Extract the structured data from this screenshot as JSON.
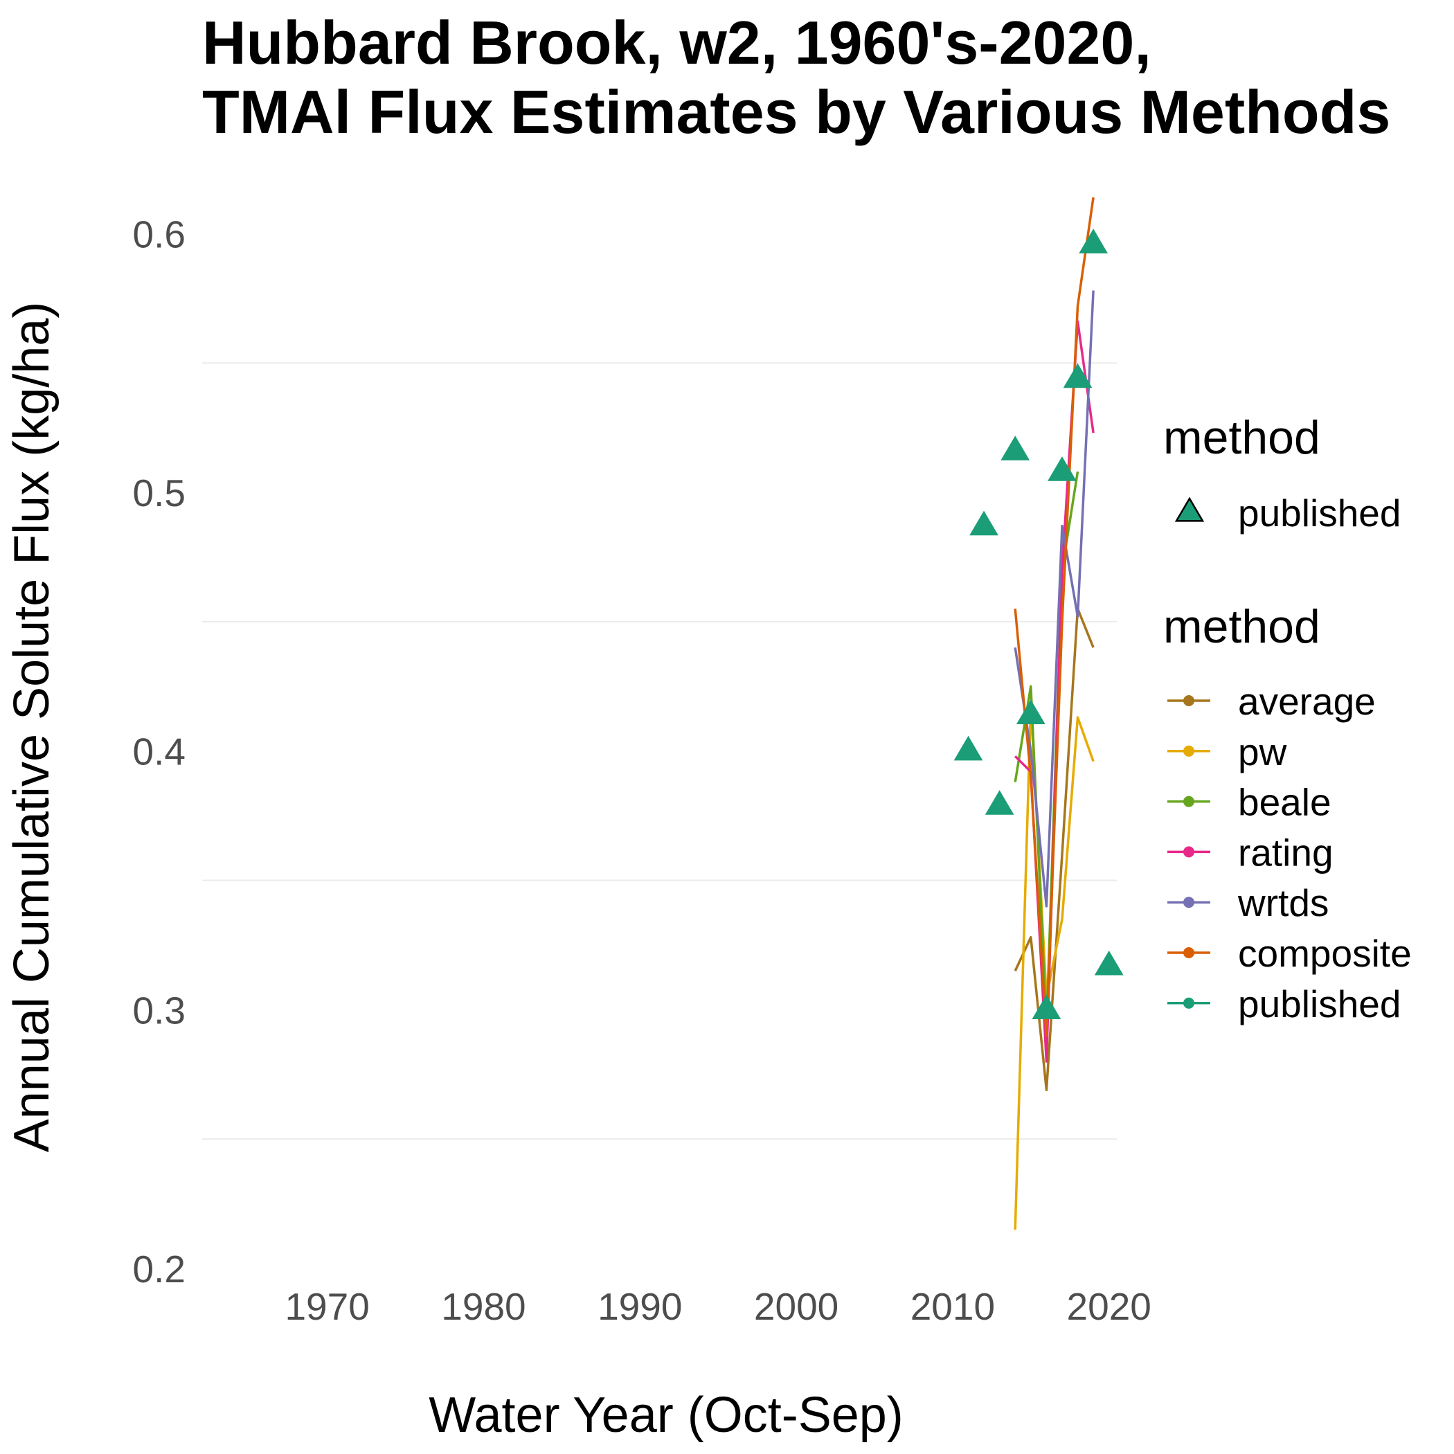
{
  "chart_data": {
    "type": "line",
    "title_lines": [
      "Hubbard Brook, w2, 1960's-2020,",
      "TMAl Flux Estimates by Various Methods"
    ],
    "xlabel": "Water Year (Oct-Sep)",
    "ylabel": "Annual Cumulative Solute Flux (kg/ha)",
    "xlim": [
      1962,
      2020.5
    ],
    "ylim": [
      0.2,
      0.61
    ],
    "x_ticks": [
      1970,
      1980,
      1990,
      2000,
      2010,
      2020
    ],
    "x_tick_labels": [
      "1970",
      "1980",
      "1990",
      "2000",
      "2010",
      "2020"
    ],
    "y_ticks": [
      0.2,
      0.3,
      0.4,
      0.5,
      0.6
    ],
    "y_tick_labels": [
      "0.2",
      "0.3",
      "0.4",
      "0.5",
      "0.6"
    ],
    "y_minor_gridlines": [
      0.25,
      0.35,
      0.45,
      0.55
    ],
    "grid": "horizontal only",
    "legend_placement": "right",
    "series": [
      {
        "name": "average",
        "color": "#a6761d",
        "x": [
          2014,
          2015,
          2016,
          2017,
          2018,
          2019
        ],
        "y": [
          0.315,
          0.328,
          0.269,
          0.36,
          0.455,
          0.44
        ]
      },
      {
        "name": "pw",
        "color": "#e6ab02",
        "x": [
          2014,
          2015,
          2016,
          2017,
          2018,
          2019
        ],
        "y": [
          0.215,
          0.418,
          0.305,
          0.335,
          0.413,
          0.396
        ]
      },
      {
        "name": "beale",
        "color": "#66a61e",
        "x": [
          2014,
          2015,
          2016,
          2017,
          2018
        ],
        "y": [
          0.388,
          0.425,
          0.293,
          0.47,
          0.508
        ]
      },
      {
        "name": "rating",
        "color": "#e7298a",
        "x": [
          2014,
          2015,
          2016,
          2017,
          2018,
          2019
        ],
        "y": [
          0.398,
          0.392,
          0.28,
          0.47,
          0.566,
          0.523
        ]
      },
      {
        "name": "wrtds",
        "color": "#7570b3",
        "x": [
          2014,
          2015,
          2016,
          2017,
          2018,
          2019
        ],
        "y": [
          0.44,
          0.4,
          0.34,
          0.487,
          0.452,
          0.578
        ]
      },
      {
        "name": "composite",
        "color": "#d95f02",
        "x": [
          2014,
          2015,
          2016,
          2017,
          2018,
          2019
        ],
        "y": [
          0.455,
          0.39,
          0.29,
          0.45,
          0.572,
          0.614
        ]
      },
      {
        "name": "published",
        "color": "#1b9e77",
        "marker": "triangle",
        "x": [
          2011,
          2012,
          2013,
          2014,
          2015,
          2016,
          2017,
          2018,
          2019,
          2020
        ],
        "y": [
          0.4,
          0.487,
          0.379,
          0.516,
          0.414,
          0.3,
          0.508,
          0.544,
          0.596,
          0.317
        ]
      }
    ],
    "legend_published_title": "method",
    "legend_published_entries": [
      "published"
    ],
    "legend_lines_title": "method",
    "legend_lines_entries": [
      "average",
      "pw",
      "beale",
      "rating",
      "wrtds",
      "composite",
      "published"
    ]
  }
}
